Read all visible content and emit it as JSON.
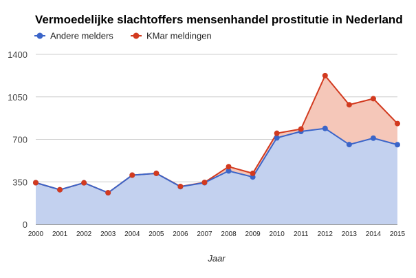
{
  "chart_data": {
    "type": "area",
    "title": "Vermoedelijke slachtoffers mensenhandel prostitutie in Nederland",
    "xlabel": "Jaar",
    "ylabel": "",
    "x": [
      "2000",
      "2001",
      "2002",
      "2003",
      "2004",
      "2005",
      "2006",
      "2007",
      "2008",
      "2009",
      "2010",
      "2011",
      "2012",
      "2013",
      "2014",
      "2015"
    ],
    "ylim": [
      0,
      1400
    ],
    "yticks": [
      "0",
      "350",
      "700",
      "1050",
      "1400"
    ],
    "grid": true,
    "legend_position": "top-left",
    "series": [
      {
        "name": "Andere melders",
        "color": "#3b65c9",
        "fill": "#c3d1ef",
        "values": [
          343,
          285,
          342,
          260,
          405,
          420,
          310,
          343,
          440,
          390,
          712,
          765,
          790,
          657,
          710,
          656
        ]
      },
      {
        "name": "KMar meldingen",
        "color": "#d23a1f",
        "fill": "#f5c7b9",
        "values": [
          343,
          285,
          342,
          260,
          405,
          420,
          312,
          345,
          475,
          420,
          750,
          785,
          1225,
          985,
          1035,
          830
        ]
      }
    ]
  }
}
